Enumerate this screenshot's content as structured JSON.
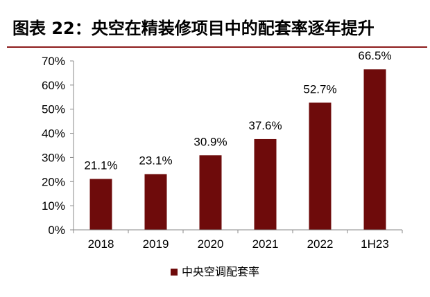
{
  "figure": {
    "title": "图表 22：央空在精装修项目中的配套率逐年提升"
  },
  "colors": {
    "bar": "#6e0b0b",
    "axis": "#888888",
    "title_rule": "#8c1b1b"
  },
  "chart_data": {
    "type": "bar",
    "title": "图表 22：央空在精装修项目中的配套率逐年提升",
    "categories": [
      "2018",
      "2019",
      "2020",
      "2021",
      "2022",
      "1H23"
    ],
    "series": [
      {
        "name": "中央空调配套率",
        "values": [
          21.1,
          23.1,
          30.9,
          37.6,
          52.7,
          66.5
        ],
        "labels": [
          "21.1%",
          "23.1%",
          "30.9%",
          "37.6%",
          "52.7%",
          "66.5%"
        ]
      }
    ],
    "ylim": [
      0,
      70
    ],
    "yticks": [
      0,
      10,
      20,
      30,
      40,
      50,
      60,
      70
    ],
    "ytick_labels": [
      "0%",
      "10%",
      "20%",
      "30%",
      "40%",
      "50%",
      "60%",
      "70%"
    ],
    "xlabel": "",
    "ylabel": "",
    "grid": false,
    "legend": {
      "position": "bottom",
      "entries": [
        "中央空调配套率"
      ]
    }
  }
}
